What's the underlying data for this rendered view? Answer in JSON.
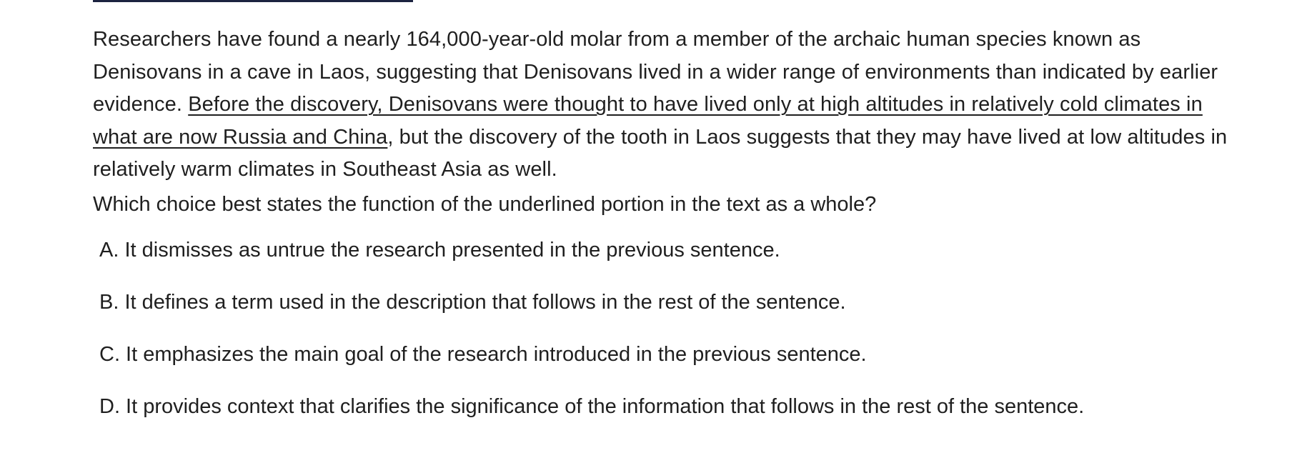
{
  "passage": {
    "before_underline": "Researchers have found a nearly 164,000-year-old molar from a member of the archaic human species known as Denisovans in a cave in Laos, suggesting that Denisovans lived in a wider range of environments than indicated by earlier evidence. ",
    "underlined": "Before the discovery, Denisovans were thought to have lived only at high altitudes in relatively cold climates in what are now Russia and China",
    "after_underline": ", but the discovery of the tooth in Laos suggests that they may have lived at low altitudes in relatively warm climates in Southeast Asia as well."
  },
  "question": "Which choice best states the function of the underlined portion in the text as a whole?",
  "choices": [
    "A. It dismisses as untrue the research presented in the previous sentence.",
    "B. It defines a term used in the description that follows in the rest of the sentence.",
    "C. It emphasizes the main goal of the research introduced in the previous sentence.",
    "D. It provides context that clarifies the significance of the information that follows in the rest of the sentence."
  ]
}
